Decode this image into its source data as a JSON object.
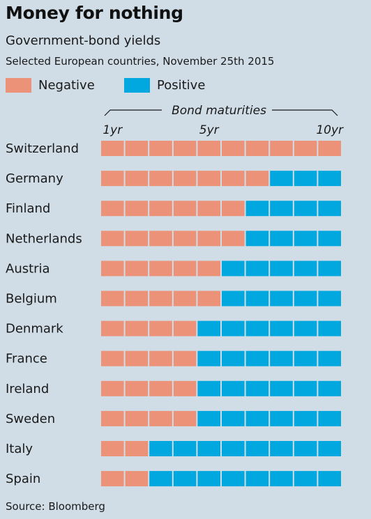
{
  "title": "Money for nothing",
  "subtitle": "Government-bond yields",
  "subtitle2": "Selected European countries, November 25th 2015",
  "source": "Source: Bloomberg",
  "colors": {
    "negative": "#ec9278",
    "positive": "#00a8df",
    "background": "#d0dde6"
  },
  "legend": [
    {
      "label": "Negative",
      "color": "#ec9278"
    },
    {
      "label": "Positive",
      "color": "#00a8df"
    }
  ],
  "chart_data": {
    "type": "heatmap",
    "title": "Bond maturities",
    "columns": [
      "1",
      "2",
      "3",
      "4",
      "5",
      "6",
      "7",
      "8",
      "9",
      "10"
    ],
    "tick_labels": [
      {
        "column": 1,
        "label": "1yr"
      },
      {
        "column": 5,
        "label": "5yr"
      },
      {
        "column": 10,
        "label": "10yr"
      }
    ],
    "rows": [
      {
        "country": "Switzerland",
        "negative_maturities": 10
      },
      {
        "country": "Germany",
        "negative_maturities": 7
      },
      {
        "country": "Finland",
        "negative_maturities": 6
      },
      {
        "country": "Netherlands",
        "negative_maturities": 6
      },
      {
        "country": "Austria",
        "negative_maturities": 5
      },
      {
        "country": "Belgium",
        "negative_maturities": 5
      },
      {
        "country": "Denmark",
        "negative_maturities": 4
      },
      {
        "country": "France",
        "negative_maturities": 4
      },
      {
        "country": "Ireland",
        "negative_maturities": 4
      },
      {
        "country": "Sweden",
        "negative_maturities": 4
      },
      {
        "country": "Italy",
        "negative_maturities": 2
      },
      {
        "country": "Spain",
        "negative_maturities": 2
      }
    ]
  }
}
